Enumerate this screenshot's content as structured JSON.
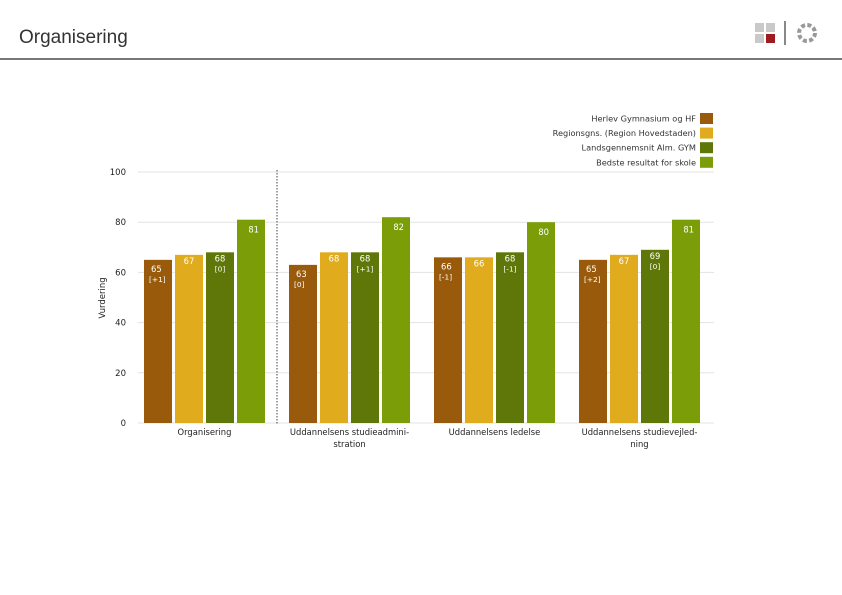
{
  "page": {
    "title": "Organisering"
  },
  "chart_data": {
    "type": "bar",
    "ylabel": "Vurdering",
    "ylim": [
      0,
      100
    ],
    "yticks": [
      0,
      20,
      40,
      60,
      80,
      100
    ],
    "grid": true,
    "legend_position": "top-right",
    "categories": [
      [
        "Organisering"
      ],
      [
        "Uddannelsens studieadmini-",
        "stration"
      ],
      [
        "Uddannelsens ledelse"
      ],
      [
        "Uddannelsens studievejled-",
        "ning"
      ]
    ],
    "series": [
      {
        "name": "Herlev Gymnasium og HF",
        "color": "#9a5a0c",
        "values": [
          65,
          63,
          66,
          65
        ],
        "diffs": [
          "[+1]",
          "[0]",
          "[-1]",
          "[+2]"
        ]
      },
      {
        "name": "Regionsgns. (Region Hovedstaden)",
        "color": "#e0ac1d",
        "values": [
          67,
          68,
          66,
          67
        ],
        "diffs": [
          "",
          "",
          "",
          ""
        ]
      },
      {
        "name": "Landsgennemsnit Alm. GYM",
        "color": "#5e7708",
        "values": [
          68,
          68,
          68,
          69
        ],
        "diffs": [
          "[0]",
          "[+1]",
          "[-1]",
          "[0]"
        ]
      },
      {
        "name": "Bedste resultat for skole",
        "color": "#7b9e08",
        "values": [
          81,
          82,
          80,
          81
        ],
        "diffs": [
          "",
          "",
          "",
          ""
        ]
      }
    ]
  }
}
